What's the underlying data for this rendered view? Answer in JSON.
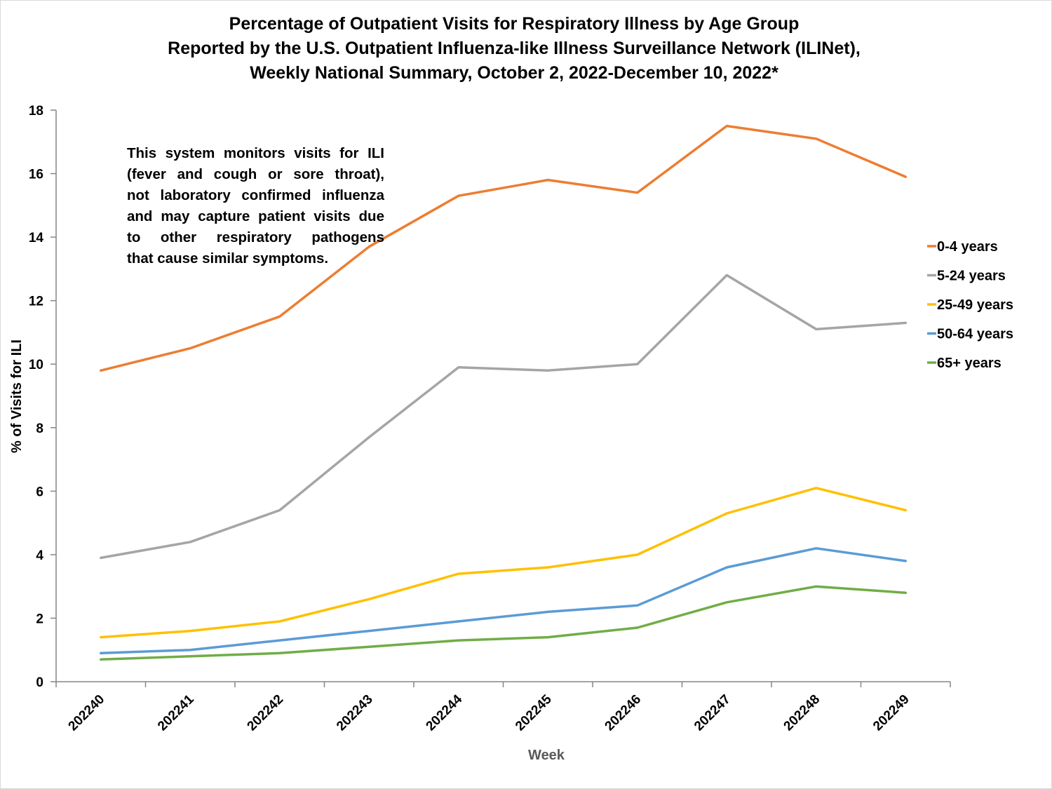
{
  "chart_data": {
    "type": "line",
    "title": [
      "Percentage of Outpatient Visits for Respiratory Illness by Age Group",
      "Reported by the U.S. Outpatient Influenza-like Illness Surveillance Network (ILINet),",
      "Weekly National Summary, October 2, 2022-December 10, 2022*"
    ],
    "xlabel": "Week",
    "ylabel": "% of Visits for ILI",
    "x": [
      "202240",
      "202241",
      "202242",
      "202243",
      "202244",
      "202245",
      "202246",
      "202247",
      "202248",
      "202249"
    ],
    "ylim": [
      0,
      18
    ],
    "yticks": [
      0,
      2,
      4,
      6,
      8,
      10,
      12,
      14,
      16,
      18
    ],
    "grid": false,
    "legend_position": "right",
    "series": [
      {
        "name": "0-4 years",
        "color": "#ED7D31",
        "values": [
          9.8,
          10.5,
          11.5,
          13.7,
          15.3,
          15.8,
          15.4,
          17.5,
          17.1,
          15.9
        ]
      },
      {
        "name": "5-24 years",
        "color": "#A5A5A5",
        "values": [
          3.9,
          4.4,
          5.4,
          7.7,
          9.9,
          9.8,
          10.0,
          12.8,
          11.1,
          11.3
        ]
      },
      {
        "name": "25-49 years",
        "color": "#FFC000",
        "values": [
          1.4,
          1.6,
          1.9,
          2.6,
          3.4,
          3.6,
          4.0,
          5.3,
          6.1,
          5.4
        ]
      },
      {
        "name": "50-64 years",
        "color": "#5B9BD5",
        "values": [
          0.9,
          1.0,
          1.3,
          1.6,
          1.9,
          2.2,
          2.4,
          3.6,
          4.2,
          3.8
        ]
      },
      {
        "name": "65+ years",
        "color": "#70AD47",
        "values": [
          0.7,
          0.8,
          0.9,
          1.1,
          1.3,
          1.4,
          1.7,
          2.5,
          3.0,
          2.8
        ]
      }
    ],
    "annotation": [
      "This system monitors visits for ILI",
      "(fever and cough or sore throat),",
      "not laboratory confirmed influenza",
      "and may capture patient visits due",
      "to other respiratory pathogens",
      "that cause similar symptoms."
    ]
  },
  "colors": {
    "axis": "#868686",
    "xlabel": "#595959",
    "ylabel": "#000000"
  }
}
